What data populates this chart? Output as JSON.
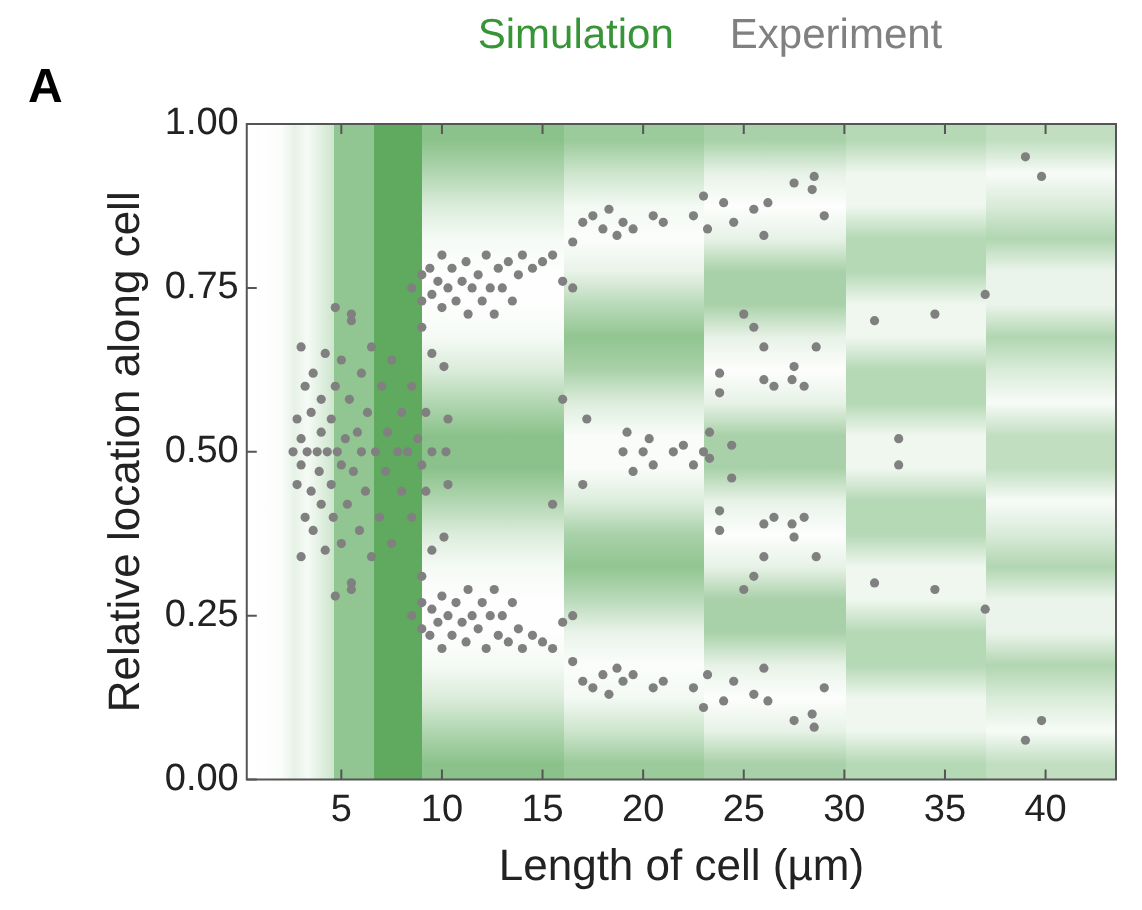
{
  "chart_data": {
    "type": "scatter",
    "xlabel": "Length of cell (µm)",
    "ylabel": "Relative location along cell",
    "annotations": [
      "A"
    ],
    "xlim": [
      0.3,
      43.5
    ],
    "ylim": [
      0,
      1
    ],
    "xticks": [
      5,
      10,
      15,
      20,
      25,
      30,
      35,
      40
    ],
    "yticks": [
      {
        "value": 0,
        "label": "0.00"
      },
      {
        "value": 0.25,
        "label": "0.25"
      },
      {
        "value": 0.5,
        "label": "0.50"
      },
      {
        "value": 0.75,
        "label": "0.75"
      },
      {
        "value": 1,
        "label": "1.00"
      }
    ],
    "grid": false,
    "legend": "top",
    "marker": "circle",
    "series": [
      {
        "type": "heatmap",
        "name": "Simulation",
        "color": "#379537"
      },
      {
        "type": "scatter",
        "name": "Experiment",
        "color": "#808080",
        "x": [
          2.6,
          2.8,
          2.8,
          3,
          3,
          3.2,
          3.2,
          3.3,
          3.5,
          3.5,
          3.6,
          3.6,
          3.8,
          3.9,
          4,
          4,
          4,
          4.2,
          4.2,
          4.3,
          4.5,
          4.5,
          4.6,
          4.7,
          4.8,
          5,
          5,
          5,
          5.2,
          5.3,
          5.4,
          5.5,
          5.5,
          5.6,
          5.8,
          5.9,
          6,
          6,
          6.2,
          6.3,
          6.5,
          6.5,
          6.7,
          6.9,
          7,
          7.2,
          7.3,
          7.5,
          7.5,
          7.8,
          8,
          8,
          8.3,
          8.5,
          8.5,
          8.8,
          9,
          9.2,
          9.2,
          9.5,
          10.2,
          10.3,
          10.3,
          4.7,
          5.5,
          4.7,
          5.5,
          3,
          3,
          9.5,
          9.5,
          10.1,
          10.1,
          9,
          9,
          8.5,
          9,
          9,
          9.4,
          9.5,
          9.8,
          10,
          10,
          10.3,
          10.5,
          10.7,
          11,
          11.2,
          11.3,
          11.5,
          11.8,
          12,
          12.2,
          12.4,
          12.6,
          12.8,
          13,
          13.3,
          13.5,
          13.8,
          14,
          14.5,
          15,
          15.5,
          16,
          16.5,
          16.5,
          17,
          17.5,
          18,
          18.3,
          18.7,
          19,
          19.5,
          20.5,
          21,
          22.5,
          23,
          23.2,
          24,
          24.5,
          25.5,
          26.2,
          26,
          27.5,
          28.5,
          28.4,
          29,
          8.5,
          9,
          9,
          9.4,
          9.5,
          9.8,
          10,
          10,
          10.3,
          10.5,
          10.7,
          11,
          11.2,
          11.3,
          11.5,
          11.8,
          12,
          12.2,
          12.4,
          12.6,
          12.8,
          13,
          13.3,
          13.5,
          13.8,
          14,
          14.5,
          15,
          15.5,
          16,
          16.5,
          16.5,
          17,
          17.5,
          18,
          18.3,
          18.7,
          19,
          19.5,
          20.5,
          21,
          22.5,
          23,
          23.2,
          24,
          24.5,
          25.5,
          26.2,
          26,
          27.5,
          28.5,
          28.4,
          29,
          17.2,
          17,
          16,
          15.5,
          19,
          19.5,
          19.2,
          20,
          20.3,
          20.5,
          21.5,
          22,
          22.5,
          23,
          23.3,
          23.3,
          24.4,
          24.4,
          23.8,
          23.8,
          23.8,
          23.8,
          26,
          26.5,
          27.5,
          27.4,
          28,
          26,
          26.5,
          27.5,
          27.4,
          28,
          25.5,
          26,
          28.6,
          25.5,
          26,
          28.6,
          25,
          31.5,
          34.5,
          37,
          25,
          31.5,
          34.5,
          37,
          32.7,
          32.7,
          39,
          39.8,
          39,
          39.8
        ],
        "values": [
          0.5,
          0.45,
          0.55,
          0.52,
          0.48,
          0.4,
          0.6,
          0.5,
          0.44,
          0.56,
          0.38,
          0.62,
          0.5,
          0.47,
          0.53,
          0.42,
          0.58,
          0.35,
          0.65,
          0.5,
          0.45,
          0.55,
          0.4,
          0.6,
          0.5,
          0.36,
          0.64,
          0.48,
          0.52,
          0.42,
          0.58,
          0.3,
          0.7,
          0.47,
          0.53,
          0.38,
          0.62,
          0.5,
          0.44,
          0.56,
          0.34,
          0.66,
          0.5,
          0.4,
          0.6,
          0.47,
          0.53,
          0.36,
          0.64,
          0.5,
          0.44,
          0.56,
          0.5,
          0.4,
          0.6,
          0.52,
          0.48,
          0.44,
          0.56,
          0.5,
          0.5,
          0.45,
          0.55,
          0.72,
          0.71,
          0.28,
          0.29,
          0.66,
          0.34,
          0.65,
          0.35,
          0.63,
          0.37,
          0.31,
          0.69,
          0.75,
          0.77,
          0.73,
          0.78,
          0.74,
          0.76,
          0.8,
          0.72,
          0.75,
          0.78,
          0.73,
          0.76,
          0.79,
          0.71,
          0.75,
          0.77,
          0.73,
          0.8,
          0.75,
          0.71,
          0.78,
          0.75,
          0.79,
          0.73,
          0.77,
          0.8,
          0.78,
          0.79,
          0.8,
          0.76,
          0.75,
          0.82,
          0.85,
          0.86,
          0.84,
          0.87,
          0.83,
          0.85,
          0.84,
          0.86,
          0.85,
          0.86,
          0.89,
          0.84,
          0.88,
          0.85,
          0.87,
          0.88,
          0.83,
          0.91,
          0.92,
          0.9,
          0.86,
          0.25,
          0.23,
          0.27,
          0.22,
          0.26,
          0.24,
          0.2,
          0.28,
          0.25,
          0.22,
          0.27,
          0.24,
          0.21,
          0.29,
          0.25,
          0.23,
          0.27,
          0.2,
          0.25,
          0.29,
          0.22,
          0.25,
          0.21,
          0.27,
          0.23,
          0.2,
          0.22,
          0.21,
          0.2,
          0.24,
          0.25,
          0.18,
          0.15,
          0.14,
          0.16,
          0.13,
          0.17,
          0.15,
          0.16,
          0.14,
          0.15,
          0.14,
          0.11,
          0.16,
          0.12,
          0.15,
          0.13,
          0.12,
          0.17,
          0.09,
          0.08,
          0.1,
          0.14,
          0.55,
          0.45,
          0.58,
          0.42,
          0.5,
          0.47,
          0.53,
          0.5,
          0.52,
          0.48,
          0.5,
          0.51,
          0.48,
          0.5,
          0.53,
          0.49,
          0.51,
          0.46,
          0.62,
          0.59,
          0.38,
          0.41,
          0.61,
          0.6,
          0.63,
          0.61,
          0.6,
          0.39,
          0.4,
          0.37,
          0.39,
          0.4,
          0.69,
          0.66,
          0.66,
          0.31,
          0.34,
          0.34,
          0.71,
          0.7,
          0.71,
          0.74,
          0.29,
          0.3,
          0.29,
          0.26,
          0.52,
          0.48,
          0.95,
          0.92,
          0.06,
          0.09
        ]
      }
    ]
  }
}
